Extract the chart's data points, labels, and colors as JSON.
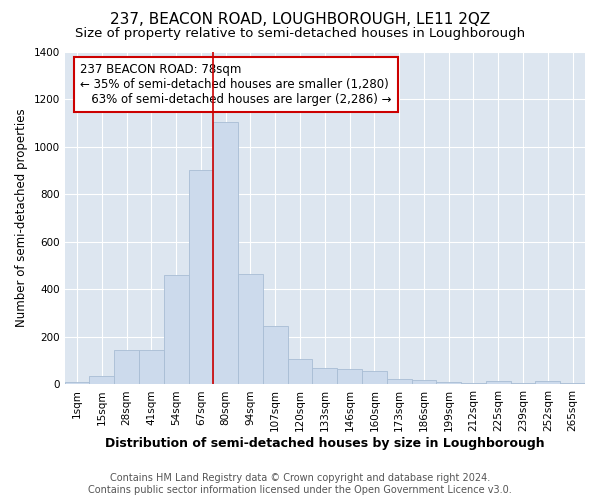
{
  "title": "237, BEACON ROAD, LOUGHBOROUGH, LE11 2QZ",
  "subtitle": "Size of property relative to semi-detached houses in Loughborough",
  "xlabel": "Distribution of semi-detached houses by size in Loughborough",
  "ylabel": "Number of semi-detached properties",
  "footer1": "Contains HM Land Registry data © Crown copyright and database right 2024.",
  "footer2": "Contains public sector information licensed under the Open Government Licence v3.0.",
  "categories": [
    "1sqm",
    "15sqm",
    "28sqm",
    "41sqm",
    "54sqm",
    "67sqm",
    "80sqm",
    "94sqm",
    "107sqm",
    "120sqm",
    "133sqm",
    "146sqm",
    "160sqm",
    "173sqm",
    "186sqm",
    "199sqm",
    "212sqm",
    "225sqm",
    "239sqm",
    "252sqm",
    "265sqm"
  ],
  "values": [
    10,
    35,
    145,
    145,
    460,
    900,
    1105,
    465,
    245,
    108,
    70,
    65,
    55,
    25,
    20,
    10,
    5,
    13,
    5,
    13,
    8
  ],
  "bar_color": "#ccdaec",
  "bar_edge_color": "#a8bdd4",
  "marker_bin_index": 6,
  "marker_color": "#cc0000",
  "annotation_line1": "237 BEACON ROAD: 78sqm",
  "annotation_line2": "← 35% of semi-detached houses are smaller (1,280)",
  "annotation_line3": "   63% of semi-detached houses are larger (2,286) →",
  "annotation_box_color": "white",
  "annotation_box_edge_color": "#cc0000",
  "ylim": [
    0,
    1400
  ],
  "yticks": [
    0,
    200,
    400,
    600,
    800,
    1000,
    1200,
    1400
  ],
  "background_color": "#dde6f0",
  "title_fontsize": 11,
  "subtitle_fontsize": 9.5,
  "ylabel_fontsize": 8.5,
  "xlabel_fontsize": 9,
  "footer_fontsize": 7,
  "tick_fontsize": 7.5,
  "ann_fontsize": 8.5
}
